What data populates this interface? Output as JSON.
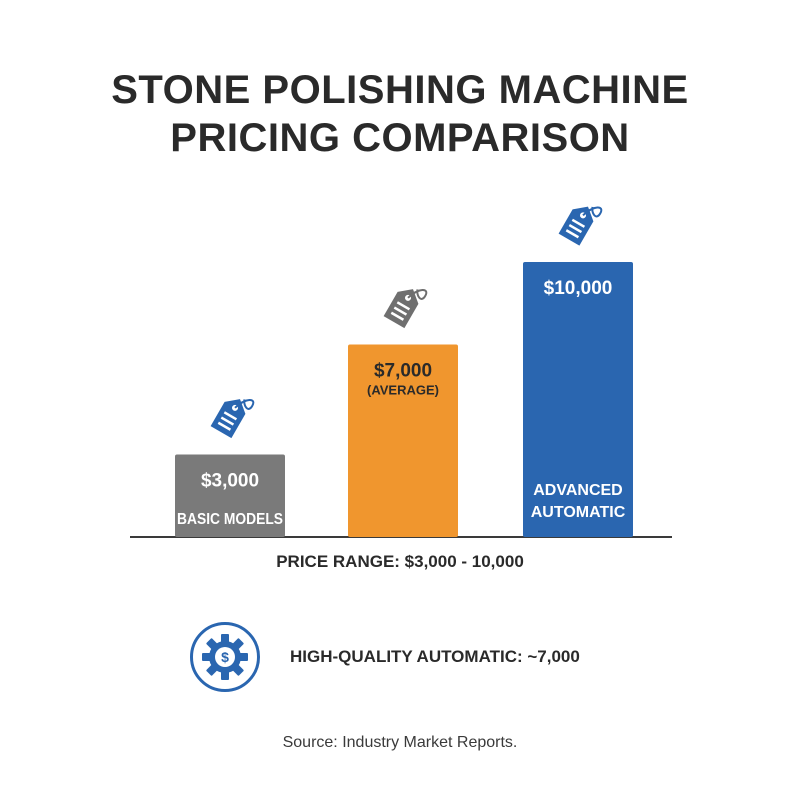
{
  "title_line1": "STONE POLISHING MACHINE",
  "title_line2": "PRICING COMPARISON",
  "chart_data": {
    "type": "bar",
    "categories": [
      "BASIC MODELS",
      "(AVERAGE)",
      "ADVANCED AUTOMATIC"
    ],
    "values": [
      3000,
      7000,
      10000
    ],
    "value_labels": [
      "$3,000",
      "$7,000",
      "$10,000"
    ],
    "category_labels": [
      [
        "BASIC MODELS"
      ],
      [
        "(AVERAGE)"
      ],
      [
        "ADVANCED",
        "AUTOMATIC"
      ]
    ],
    "colors": [
      "#7a7a7a",
      "#f0962e",
      "#2a66b0"
    ],
    "tag_colors": [
      "#2a66b0",
      "#6f6f6f",
      "#2a66b0"
    ],
    "ylim": [
      0,
      10000
    ],
    "grid": false,
    "title": "STONE POLISHING MACHINE PRICING COMPARISON"
  },
  "price_range": "PRICE RANGE: $3,000 - 10,000",
  "badge": {
    "icon": "gear-dollar-icon",
    "text": "HIGH-QUALITY AUTOMATIC: ~7,000"
  },
  "source": "Source: Industry Market Reports."
}
